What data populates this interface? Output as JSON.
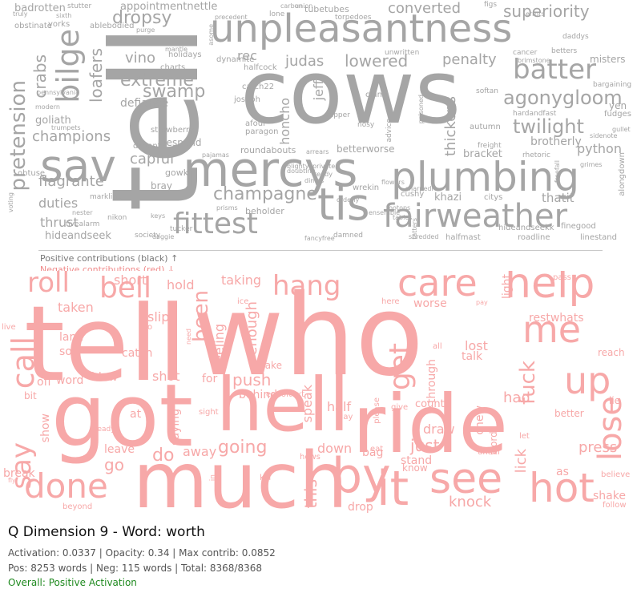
{
  "colors": {
    "positive": "#a5a5a5",
    "negative": "#f7a8a8",
    "overall_positive": "#1f8a1f"
  },
  "legend": {
    "positive": "Positive contributions (black) ↑",
    "negative": "Negative contributions (red) ↓"
  },
  "info": {
    "title": "Q Dimension 9 - Word: worth",
    "stats": "Activation: 0.0337 | Opacity: 0.34 | Max contrib: 0.0852",
    "counts": "Pos: 8253 words | Neg: 115 words | Total: 8368/8368",
    "overall": "Overall: Positive Activation"
  },
  "positive_words": [
    "cows",
    "tell",
    "unpleasantness",
    "mercys",
    "plumbing",
    "sav",
    "fairweather",
    "fittest",
    "tis",
    "batter",
    "bilge",
    "pretension",
    "dropsy",
    "converted",
    "superiority",
    "agonygloom",
    "twilight",
    "champagne",
    "lowered",
    "penalty",
    "extreme",
    "swamp",
    "loafers",
    "crabs",
    "champions",
    "capful",
    "flagrante",
    "duties",
    "thrust",
    "hideandseek",
    "judas",
    "rec",
    "vino",
    "defiance",
    "python",
    "brotherly",
    "bracket",
    "thickens",
    "khazi",
    "thatit",
    "honcho",
    "jeff",
    "goliath",
    "appointmentnettle",
    "badrotten",
    "betterworse",
    "roundabouts",
    "beholder",
    "bray",
    "gowk",
    "despond",
    "yen",
    "misters",
    "fudges",
    "catch22",
    "dynamite",
    "joseph",
    "afoul",
    "strawberry",
    "trumpets",
    "linestand",
    "halfmast",
    "shredded",
    "roadline",
    "finegood",
    "hideandseekk",
    "alongdown",
    "wrekin",
    "cushy",
    "citys",
    "orderly",
    "prisms",
    "markline",
    "nikon",
    "fivealarm",
    "tubetubes",
    "torpedoes",
    "lone",
    "union",
    "figs",
    "errors",
    "cancer",
    "softan",
    "hardandfast",
    "autumn",
    "freight",
    "rhetoric",
    "obtuse",
    "pennsylvania",
    "modern",
    "sixth",
    "yorks",
    "obstinate",
    "truly",
    "stutter",
    "ablebodied",
    "purge",
    "charts",
    "holidays",
    "mantle",
    "halfcock",
    "blighty",
    "teddy",
    "private",
    "grimes",
    "sidenote",
    "freefall",
    "daddys",
    "betters",
    "brimstone",
    "bargaining",
    "unwritten",
    "advice",
    "paragon",
    "distant",
    "nosy",
    "clung",
    "gipper",
    "tucker",
    "keys",
    "doggie",
    "society",
    "nester",
    "voting",
    "precedent",
    "asome",
    "carbon",
    "dimes",
    "pajamas",
    "gullet",
    "poisoned",
    "ensemble",
    "damned",
    "fancyfree",
    "tables",
    "tatters",
    "sharpedl",
    "flowers",
    "arrears",
    "doubting",
    "tootops",
    "scorpions",
    "worl",
    "isare",
    "pollen"
  ],
  "negative_words": [
    "who",
    "tell",
    "got",
    "hell",
    "ride",
    "much",
    "by",
    "it",
    "see",
    "hot",
    "done",
    "call",
    "say",
    "roll",
    "bell",
    "hang",
    "care",
    "help",
    "me",
    "up",
    "lose",
    "fuck",
    "get",
    "been",
    "enough",
    "feeling",
    "push",
    "behind",
    "half",
    "just",
    "draw",
    "chew",
    "words",
    "had",
    "knock",
    "lick",
    "shake",
    "press",
    "as",
    "bag",
    "stand",
    "know",
    "down",
    "going",
    "away",
    "do",
    "go",
    "leave",
    "saying",
    "shot",
    "for",
    "blow",
    "word",
    "off",
    "bit",
    "show",
    "break",
    "at",
    "catch",
    "slip",
    "taken",
    "land",
    "so",
    "short",
    "hold",
    "taking",
    "restwhats",
    "reach",
    "lost",
    "talk",
    "light",
    "worse",
    "through",
    "count",
    "give",
    "day",
    "please",
    "eat",
    "speak",
    "better",
    "under",
    "believe",
    "follow",
    "beyond",
    "take",
    "too",
    "ready",
    "sight",
    "drop",
    "hows",
    "live",
    "fly",
    "here",
    "pay",
    "pass",
    "kill",
    "this",
    "let",
    "in",
    "ice",
    "lie",
    "endoftext",
    "all",
    "to",
    "need",
    "clear",
    "between"
  ]
}
